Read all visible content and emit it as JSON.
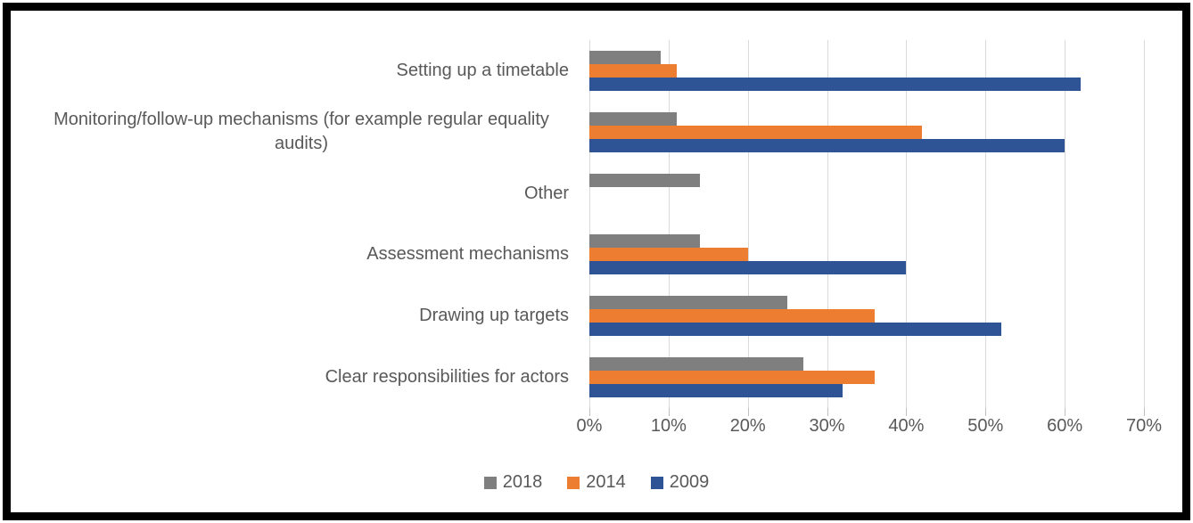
{
  "chart_data": {
    "type": "bar",
    "orientation": "horizontal",
    "title": "",
    "categories": [
      "Setting up a timetable",
      "Monitoring/follow-up mechanisms (for example regular equality audits)",
      "Other",
      "Assessment mechanisms",
      "Drawing up targets",
      "Clear responsibilities for actors"
    ],
    "series": [
      {
        "name": "2018",
        "color": "#7F7F7F",
        "values": [
          9,
          11,
          14,
          14,
          25,
          27
        ]
      },
      {
        "name": "2014",
        "color": "#ED7D31",
        "values": [
          11,
          42,
          0,
          20,
          36,
          36
        ]
      },
      {
        "name": "2009",
        "color": "#2F5496",
        "values": [
          62,
          60,
          0,
          40,
          52,
          32
        ]
      }
    ],
    "xlabel": "",
    "ylabel": "",
    "xlim": [
      0,
      70
    ],
    "x_tick_values": [
      0,
      10,
      20,
      30,
      40,
      50,
      60,
      70
    ],
    "x_tick_labels": [
      "0%",
      "10%",
      "20%",
      "30%",
      "40%",
      "50%",
      "60%",
      "70%"
    ],
    "grid": "vertical",
    "legend_position": "bottom"
  },
  "legend": {
    "items": [
      {
        "label": "2018",
        "color": "#7F7F7F"
      },
      {
        "label": "2014",
        "color": "#ED7D31"
      },
      {
        "label": "2009",
        "color": "#2F5496"
      }
    ]
  },
  "styles": {
    "grid_color": "#D9D9D9",
    "tick_color": "#BFBFBF",
    "text_color": "#595959",
    "frame_border_color": "#000000",
    "background_color": "#FFFFFF"
  }
}
